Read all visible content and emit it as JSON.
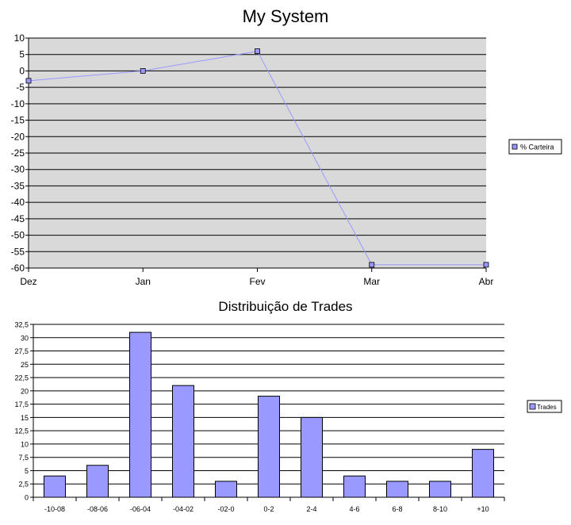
{
  "chart_data": [
    {
      "type": "line",
      "title": "My System",
      "xlabel": "",
      "ylabel": "",
      "categories": [
        "Dez",
        "Jan",
        "Fev",
        "Mar",
        "Abr"
      ],
      "series": [
        {
          "name": "% Carteira",
          "values": [
            -3,
            0,
            6,
            -59,
            -59
          ]
        }
      ],
      "ylim": [
        -60,
        10
      ],
      "ystep": 5,
      "yticks": [
        "10",
        "5",
        "0",
        "-5",
        "-10",
        "-15",
        "-20",
        "-25",
        "-30",
        "-35",
        "-40",
        "-45",
        "-50",
        "-55",
        "-60"
      ],
      "grid": true,
      "legend": "right",
      "colors": {
        "line": "#9999ff",
        "plot_bg": "#d9d9d9",
        "marker": "#9999ff"
      }
    },
    {
      "type": "bar",
      "title": "Distribuição de Trades",
      "xlabel": "",
      "ylabel": "",
      "categories": [
        "-10-08",
        "-08-06",
        "-06-04",
        "-04-02",
        "-02-0",
        "0-2",
        "2-4",
        "4-6",
        "6-8",
        "8-10",
        "+10"
      ],
      "series": [
        {
          "name": "Trades",
          "values": [
            4,
            6,
            31,
            21,
            3,
            19,
            15,
            4,
            3,
            3,
            9
          ]
        }
      ],
      "ylim": [
        0,
        32.5
      ],
      "ystep": 2.5,
      "yticks": [
        "32,5",
        "30",
        "27,5",
        "25",
        "22,5",
        "20",
        "17,5",
        "15",
        "12,5",
        "10",
        "7,5",
        "5",
        "2,5",
        "0"
      ],
      "grid": true,
      "legend": "right",
      "colors": {
        "bar": "#9999ff",
        "plot_bg": "#ffffff"
      }
    }
  ]
}
